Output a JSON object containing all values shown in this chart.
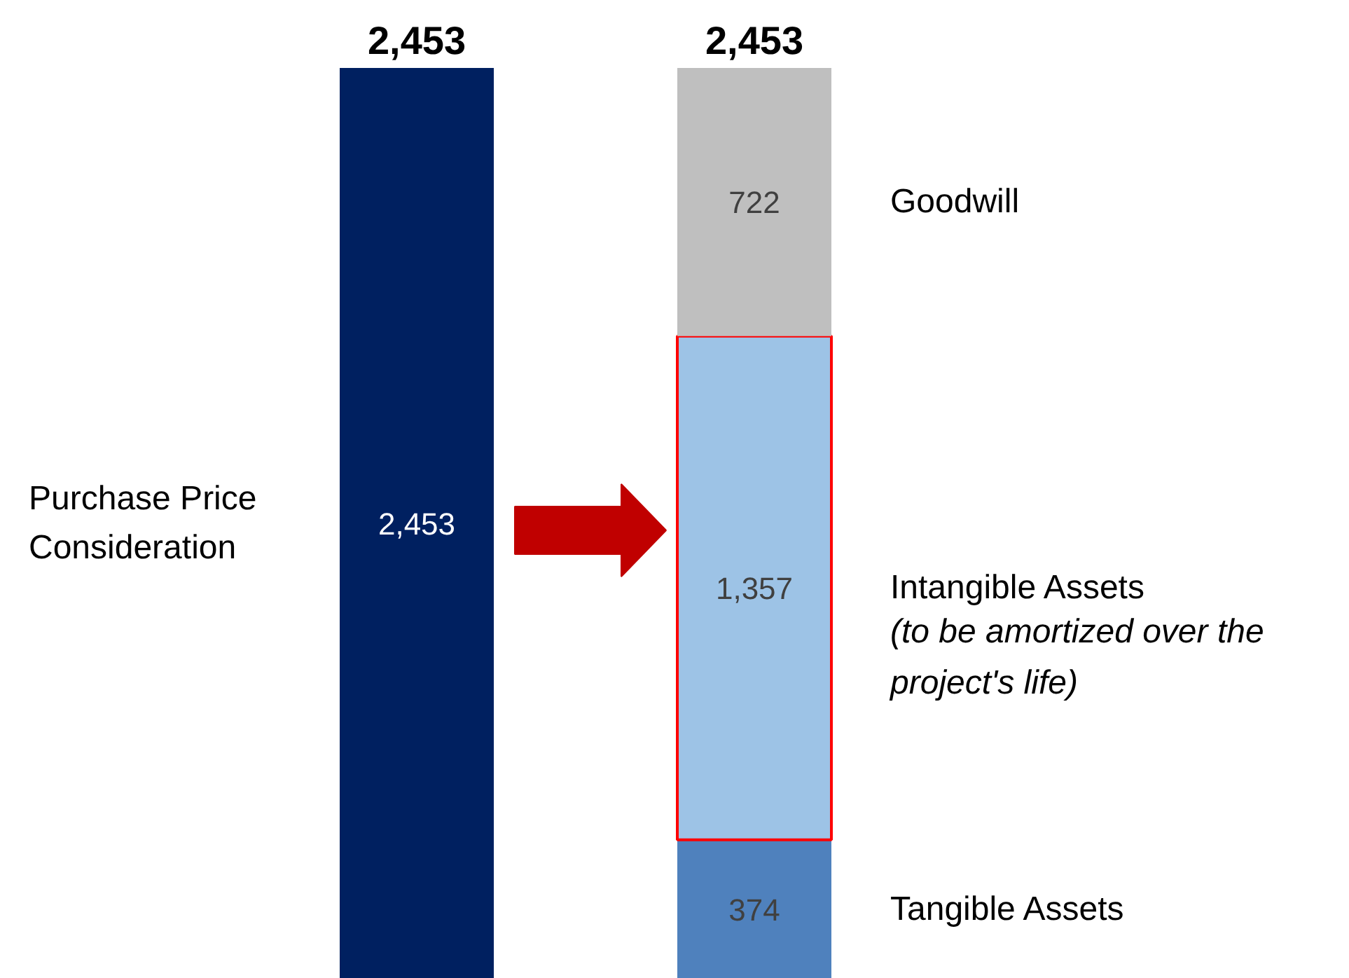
{
  "chart_data": {
    "type": "bar",
    "stacked": true,
    "categories": [
      null,
      null
    ],
    "series": [
      {
        "name": "Purchase Price Consideration",
        "color": "#002060",
        "values": [
          2453,
          null
        ],
        "value_labels": [
          "2,453",
          null
        ]
      },
      {
        "name": "Tangible Assets",
        "color": "#4f81bd",
        "values": [
          null,
          374
        ],
        "value_labels": [
          null,
          "374"
        ]
      },
      {
        "name": "Intangible Assets",
        "color": "#9dc3e6",
        "values": [
          null,
          1357
        ],
        "value_labels": [
          null,
          "1,357"
        ]
      },
      {
        "name": "Goodwill",
        "color": "#bfbfbf",
        "values": [
          null,
          722
        ],
        "value_labels": [
          null,
          "722"
        ]
      }
    ],
    "totals": [
      "2,453",
      "2,453"
    ],
    "annotations": [
      "(to be amortized over the project's life)"
    ],
    "grid": false,
    "tick_labels": false
  }
}
